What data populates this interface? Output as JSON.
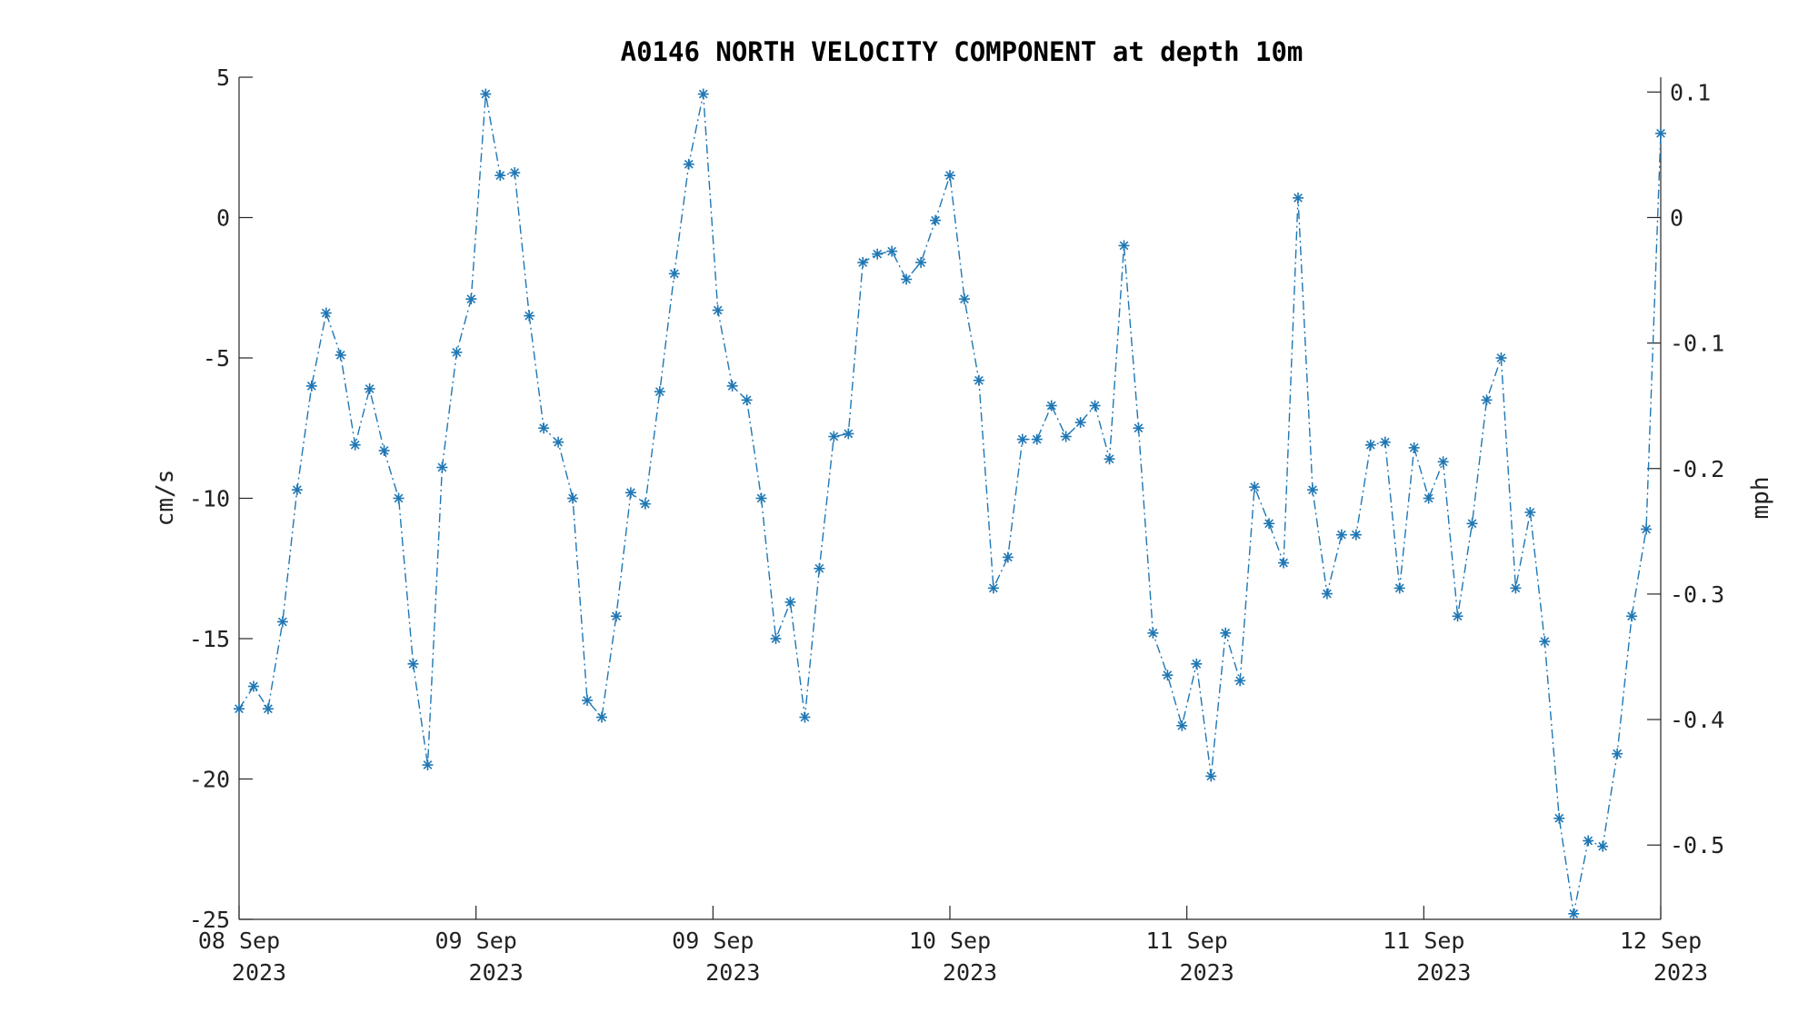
{
  "chart_data": {
    "type": "line",
    "title": "A0146 NORTH VELOCITY COMPONENT at depth 10m",
    "ylabel": "cm/s",
    "y2label": "mph",
    "ylim": [
      -25,
      5
    ],
    "y2lim": [
      -0.5592,
      0.1118
    ],
    "yticks": [
      5,
      0,
      -5,
      -10,
      -15,
      -20,
      -25
    ],
    "yticklabels": [
      "5",
      "0",
      "-5",
      "-10",
      "-15",
      "-20",
      "-25"
    ],
    "y2ticks": [
      0.1,
      0,
      -0.1,
      -0.2,
      -0.3,
      -0.4,
      -0.5
    ],
    "y2ticklabels": [
      "0.1",
      "0",
      "-0.1",
      "-0.2",
      "-0.3",
      "-0.4",
      "-0.5"
    ],
    "xlim": [
      "2023-09-08T00:00",
      "2023-09-12T00:00"
    ],
    "xticks": [
      {
        "line1": "08 Sep",
        "line2": "2023"
      },
      {
        "line1": "09 Sep",
        "line2": "2023"
      },
      {
        "line1": "09 Sep",
        "line2": "2023"
      },
      {
        "line1": "10 Sep",
        "line2": "2023"
      },
      {
        "line1": "11 Sep",
        "line2": "2023"
      },
      {
        "line1": "11 Sep",
        "line2": "2023"
      },
      {
        "line1": "12 Sep",
        "line2": "2023"
      }
    ],
    "grid": false,
    "legend": "none",
    "series": [
      {
        "color": "#1f77b4",
        "line_style": "dash-dot",
        "marker": "asterisk",
        "values": [
          -17.5,
          -16.7,
          -17.5,
          -14.4,
          -9.7,
          -6.0,
          -3.4,
          -4.9,
          -8.1,
          -6.1,
          -8.3,
          -10.0,
          -15.9,
          -19.5,
          -8.9,
          -4.8,
          -2.9,
          4.4,
          1.5,
          1.6,
          -3.5,
          -7.5,
          -8.0,
          -10.0,
          -17.2,
          -17.8,
          -14.2,
          -9.8,
          -10.2,
          -6.2,
          -2.0,
          1.9,
          4.4,
          -3.3,
          -6.0,
          -6.5,
          -10.0,
          -15.0,
          -13.7,
          -17.8,
          -12.5,
          -7.8,
          -7.7,
          -1.6,
          -1.3,
          -1.2,
          -2.2,
          -1.6,
          -0.1,
          1.5,
          -2.9,
          -5.8,
          -13.2,
          -12.1,
          -7.9,
          -7.9,
          -6.7,
          -7.8,
          -7.3,
          -6.7,
          -8.6,
          -1.0,
          -7.5,
          -14.8,
          -16.3,
          -18.1,
          -15.9,
          -19.9,
          -14.8,
          -16.5,
          -9.6,
          -10.9,
          -12.3,
          0.7,
          -9.7,
          -13.4,
          -11.3,
          -11.3,
          -8.1,
          -8.0,
          -13.2,
          -8.2,
          -10.0,
          -8.7,
          -14.2,
          -10.9,
          -6.5,
          -5.0,
          -13.2,
          -10.5,
          -15.1,
          -21.4,
          -24.8,
          -22.2,
          -22.4,
          -19.1,
          -14.2,
          -11.1,
          3.0
        ]
      }
    ]
  }
}
